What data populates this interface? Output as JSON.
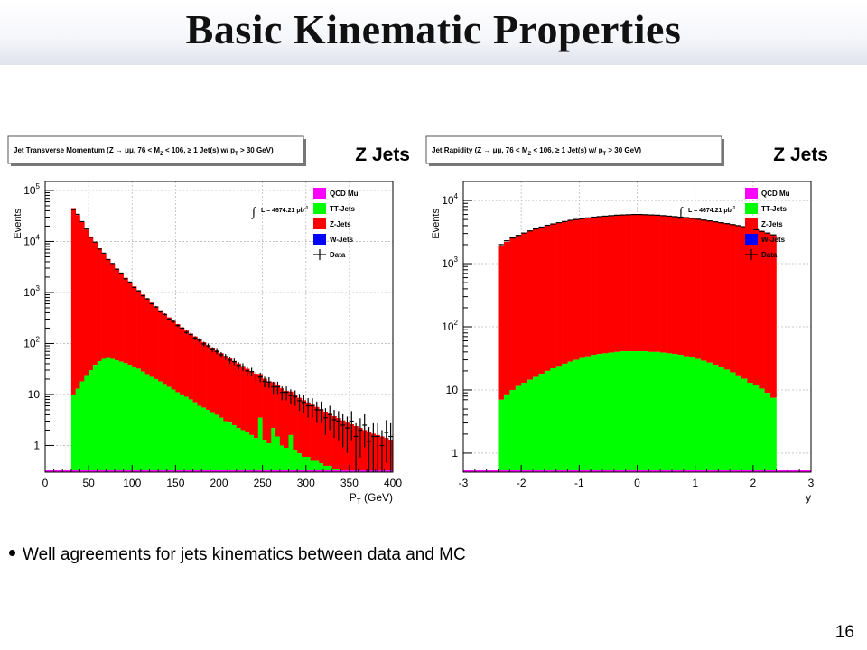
{
  "slide": {
    "title": "Basic Kinematic Properties",
    "bullet": "Well agreements for jets kinematics between data and MC",
    "page_number": "16"
  },
  "colors": {
    "qcd_mu": "#ff00ff",
    "tt_jets": "#00ff00",
    "z_jets": "#ff0000",
    "w_jets": "#0000ff",
    "data": "#000000",
    "uncertainty_band": "#e89a9a"
  },
  "chart_data": [
    {
      "type": "histogram-stacked",
      "title": "Jet Transverse Momentum (Z → μμ, 76 < M",
      "title_sub_1": "Z",
      "title_mid": " < 106, ≥ 1 Jet(s) w/ p",
      "title_sub_2": "T",
      "title_end": " > 30 GeV)",
      "big_label": "Z Jets",
      "xlabel_main": "P",
      "xlabel_sub": "T",
      "xlabel_unit": " (GeV)",
      "ylabel": "Events",
      "xlim": [
        0,
        400
      ],
      "ylim": [
        0.3,
        150000
      ],
      "log_y": true,
      "x_ticks": [
        0,
        50,
        100,
        150,
        200,
        250,
        300,
        350,
        400
      ],
      "x_tick_labels": [
        "0",
        "50",
        "100",
        "150",
        "200",
        "250",
        "300",
        "350",
        "400"
      ],
      "y_ticks": [
        1,
        10,
        100,
        1000,
        10000,
        100000
      ],
      "y_tick_labels": [
        "1",
        "10",
        "10^2",
        "10^3",
        "10^4",
        "10^5"
      ],
      "grid": true,
      "lumi_text": "L = 4674.21 pb",
      "lumi_sup": "-1",
      "legend": [
        {
          "label": "QCD Mu",
          "color_key": "qcd_mu"
        },
        {
          "label": "TT-Jets",
          "color_key": "tt_jets"
        },
        {
          "label": "Z-Jets",
          "color_key": "z_jets"
        },
        {
          "label": "W-Jets",
          "color_key": "w_jets"
        },
        {
          "label": "Data",
          "color_key": "data",
          "marker": "cross"
        }
      ],
      "legend_position": "top-right",
      "bin_edges_x": [
        30,
        35,
        40,
        45,
        50,
        55,
        60,
        65,
        70,
        75,
        80,
        85,
        90,
        95,
        100,
        105,
        110,
        115,
        120,
        125,
        130,
        135,
        140,
        145,
        150,
        155,
        160,
        165,
        170,
        175,
        180,
        185,
        190,
        195,
        200,
        205,
        210,
        215,
        220,
        225,
        230,
        235,
        240,
        245,
        250,
        255,
        260,
        265,
        270,
        275,
        280,
        285,
        290,
        295,
        300,
        305,
        310,
        315,
        320,
        325,
        330,
        335,
        340,
        345,
        350,
        355,
        360,
        365,
        370,
        375,
        380,
        385,
        390,
        395,
        400
      ],
      "series": [
        {
          "name": "TT-Jets",
          "values": [
            10,
            13,
            18,
            24,
            30,
            38,
            45,
            50,
            52,
            50,
            47,
            44,
            41,
            38,
            35,
            32,
            28,
            25,
            22,
            20,
            18,
            16,
            14,
            12.5,
            11,
            10,
            9,
            8,
            7,
            6,
            5.5,
            5,
            4.5,
            4,
            3.5,
            3,
            2.8,
            2.5,
            2.2,
            2,
            1.8,
            1.6,
            1.4,
            3.5,
            1.3,
            1.1,
            2.2,
            1.5,
            1,
            0.9,
            1.6,
            0.8,
            0.7,
            0.6,
            0.6,
            0.5,
            0.5,
            0.45,
            0.4,
            0.4,
            0.35,
            0.35,
            0.3,
            0.3,
            0.3,
            0.3,
            0.3,
            0.3,
            0.3,
            0.3,
            0.3,
            0.3,
            0.3,
            0.3
          ]
        },
        {
          "name": "Z-Jets",
          "values": [
            45000,
            33000,
            24000,
            17000,
            12500,
            9500,
            7300,
            5700,
            4500,
            3600,
            2900,
            2350,
            1900,
            1550,
            1280,
            1060,
            880,
            730,
            610,
            510,
            430,
            365,
            310,
            265,
            228,
            196,
            170,
            148,
            130,
            114,
            100,
            88,
            78,
            69,
            61,
            54,
            48,
            43,
            38,
            34,
            30,
            27,
            24,
            21.5,
            19,
            17,
            15.2,
            13.6,
            12.2,
            10.9,
            9.8,
            8.8,
            7.9,
            7.1,
            6.4,
            5.8,
            5.2,
            4.7,
            4.2,
            3.8,
            3.4,
            3.1,
            2.8,
            2.5,
            2.3,
            2.1,
            1.9,
            1.7,
            1.55,
            1.4,
            1.3,
            1.2,
            1.1,
            1.0
          ]
        },
        {
          "name": "Data",
          "values": [
            42000,
            34000,
            24500,
            17500,
            12000,
            9700,
            7100,
            5900,
            4400,
            3700,
            2850,
            2400,
            1850,
            1600,
            1250,
            1080,
            860,
            750,
            600,
            520,
            420,
            370,
            300,
            270,
            225,
            200,
            165,
            150,
            128,
            116,
            98,
            90,
            76,
            70,
            60,
            55,
            47,
            44,
            37,
            35,
            29,
            28,
            23,
            22,
            18,
            17.5,
            14,
            14,
            11,
            11,
            9.5,
            9,
            7.5,
            7,
            6,
            6,
            5,
            5,
            3.5,
            4,
            3.2,
            3,
            2.5,
            2.2,
            3,
            1.5,
            2,
            2.5,
            1.2,
            1.5,
            1.5,
            1,
            1.8,
            1.5
          ]
        }
      ]
    },
    {
      "type": "histogram-stacked",
      "title": "Jet Rapidity (Z → μμ, 76 < M",
      "title_sub_1": "Z",
      "title_mid": " < 106, ≥ 1 Jet(s) w/ p",
      "title_sub_2": "T",
      "title_end": " > 30 GeV)",
      "big_label": "Z Jets",
      "xlabel_main": "y",
      "xlabel_sub": "",
      "xlabel_unit": "",
      "ylabel": "Events",
      "xlim": [
        -3,
        3
      ],
      "ylim": [
        0.5,
        20000
      ],
      "log_y": true,
      "x_ticks": [
        -3,
        -2,
        -1,
        0,
        1,
        2,
        3
      ],
      "x_tick_labels": [
        "-3",
        "-2",
        "-1",
        "0",
        "1",
        "2",
        "3"
      ],
      "y_ticks": [
        1,
        10,
        100,
        1000,
        10000
      ],
      "y_tick_labels": [
        "1",
        "10",
        "10^2",
        "10^3",
        "10^4"
      ],
      "grid": true,
      "lumi_text": "L = 4674.21 pb",
      "lumi_sup": "-1",
      "legend": [
        {
          "label": "QCD Mu",
          "color_key": "qcd_mu"
        },
        {
          "label": "TT-Jets",
          "color_key": "tt_jets"
        },
        {
          "label": "Z-Jets",
          "color_key": "z_jets"
        },
        {
          "label": "W-Jets",
          "color_key": "w_jets"
        },
        {
          "label": "Data",
          "color_key": "data",
          "marker": "cross"
        }
      ],
      "legend_position": "top-right",
      "bin_edges_x": [
        -2.4,
        -2.3,
        -2.2,
        -2.1,
        -2.0,
        -1.9,
        -1.8,
        -1.7,
        -1.6,
        -1.5,
        -1.4,
        -1.3,
        -1.2,
        -1.1,
        -1.0,
        -0.9,
        -0.8,
        -0.7,
        -0.6,
        -0.5,
        -0.4,
        -0.3,
        -0.2,
        -0.1,
        0.0,
        0.1,
        0.2,
        0.3,
        0.4,
        0.5,
        0.6,
        0.7,
        0.8,
        0.9,
        1.0,
        1.1,
        1.2,
        1.3,
        1.4,
        1.5,
        1.6,
        1.7,
        1.8,
        1.9,
        2.0,
        2.1,
        2.2,
        2.3,
        2.4
      ],
      "series": [
        {
          "name": "TT-Jets",
          "values": [
            7,
            8.5,
            10,
            11.5,
            13,
            14.5,
            16,
            18,
            20,
            22,
            24,
            26,
            28,
            30,
            32,
            34,
            36,
            37,
            38,
            39,
            40,
            41,
            41,
            41,
            41,
            41,
            40,
            40,
            39,
            38,
            37,
            36,
            34,
            33,
            31,
            29,
            27,
            25,
            23,
            21,
            19,
            17,
            15,
            13,
            12,
            10.5,
            9,
            7.5
          ]
        },
        {
          "name": "Z-Jets",
          "values": [
            1900,
            2200,
            2500,
            2750,
            3000,
            3250,
            3500,
            3750,
            4000,
            4200,
            4400,
            4600,
            4800,
            4950,
            5100,
            5250,
            5400,
            5500,
            5600,
            5700,
            5800,
            5850,
            5900,
            5950,
            5950,
            5900,
            5850,
            5800,
            5700,
            5600,
            5500,
            5400,
            5300,
            5150,
            5000,
            4850,
            4700,
            4550,
            4400,
            4250,
            4100,
            3950,
            3800,
            3600,
            3400,
            3200,
            3000,
            2800
          ]
        },
        {
          "name": "Data",
          "values": [
            2000,
            2300,
            2550,
            2800,
            3050,
            3300,
            3550,
            3800,
            4050,
            4250,
            4450,
            4650,
            4850,
            5000,
            5150,
            5300,
            5450,
            5550,
            5650,
            5750,
            5850,
            5900,
            5950,
            6000,
            6000,
            5950,
            5900,
            5850,
            5750,
            5650,
            5550,
            5450,
            5350,
            5200,
            5050,
            4900,
            4750,
            4600,
            4450,
            4300,
            4150,
            4000,
            3850,
            3650,
            3450,
            3250,
            3050,
            2850
          ]
        }
      ]
    }
  ]
}
